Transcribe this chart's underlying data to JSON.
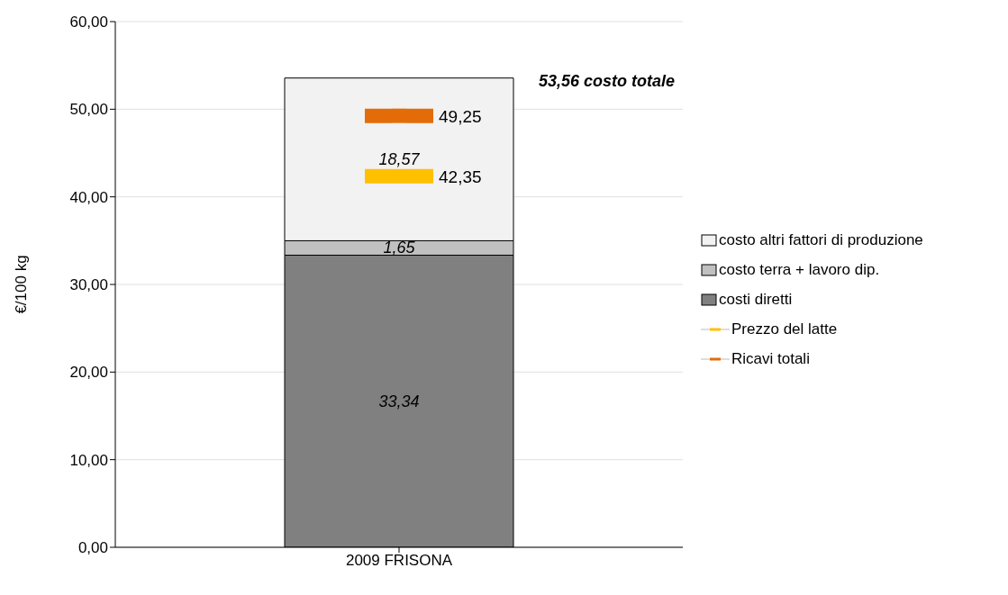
{
  "chart_data": {
    "type": "bar",
    "stacked": true,
    "ylabel": "€/100 kg",
    "categories": [
      "2009 FRISONA"
    ],
    "series": [
      {
        "name": "costi diretti",
        "color": "#808080",
        "values": [
          33.34
        ],
        "value_labels": [
          "33,34"
        ]
      },
      {
        "name": "costo terra + lavoro dip.",
        "color": "#c0c0c0",
        "values": [
          1.65
        ],
        "value_labels": [
          "1,65"
        ]
      },
      {
        "name": "costo altri fattori di produzione",
        "color": "#f2f2f2",
        "values": [
          18.57
        ],
        "value_labels": [
          "18,57"
        ]
      },
      {
        "name": "Prezzo del latte",
        "type": "line",
        "color": "#ffc000",
        "x": [
          "2009 FRISONA"
        ],
        "values": [
          42.35
        ],
        "value_labels": [
          "42,35"
        ]
      },
      {
        "name": "Ricavi totali",
        "type": "line",
        "color": "#e36c09",
        "x": [
          "2009 FRISONA"
        ],
        "values": [
          49.25
        ],
        "value_labels": [
          "49,25"
        ]
      }
    ],
    "annotations": [
      "53,56 costo totale"
    ],
    "ylim": [
      0,
      60
    ],
    "yticks": [
      {
        "value": 0,
        "label": "0,00"
      },
      {
        "value": 10,
        "label": "10,00"
      },
      {
        "value": 20,
        "label": "20,00"
      },
      {
        "value": 30,
        "label": "30,00"
      },
      {
        "value": 40,
        "label": "40,00"
      },
      {
        "value": 50,
        "label": "50,00"
      },
      {
        "value": 60,
        "label": "60,00"
      }
    ],
    "grid": "y",
    "legend": "right",
    "marker": "square"
  }
}
